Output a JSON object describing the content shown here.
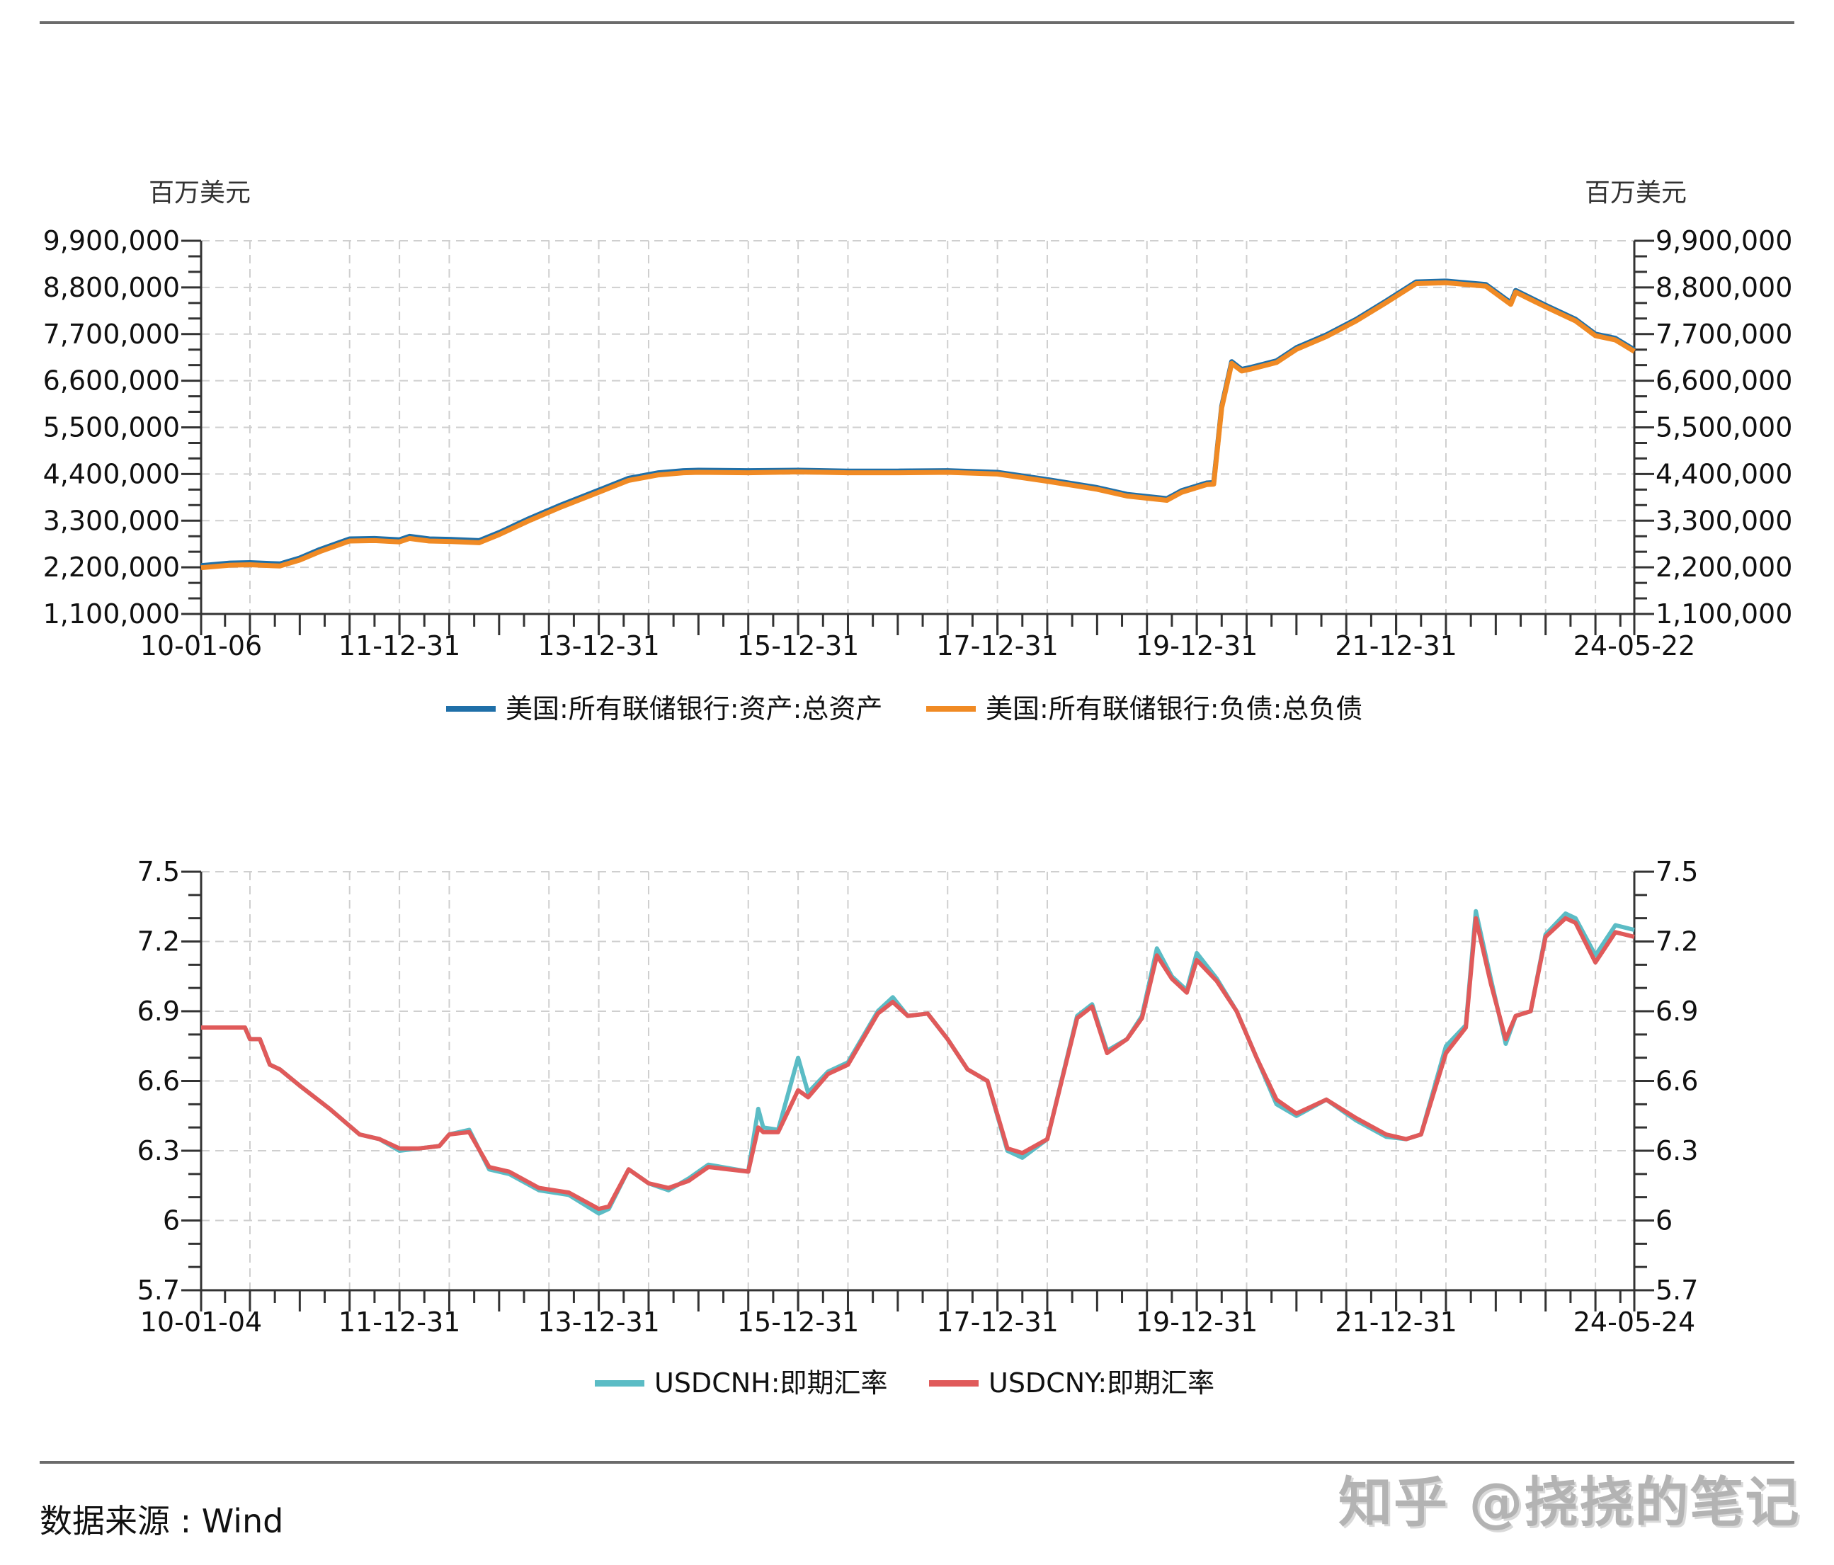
{
  "header": {
    "top_rule": true
  },
  "footer": {
    "source": "数据来源 : Wind",
    "watermark": "知乎 @挠挠的笔记"
  },
  "colors": {
    "total_assets": "#1f6fa8",
    "total_liabilities": "#f08a24",
    "usdcnh": "#5bbcc5",
    "usdcny": "#e05a5a",
    "axis": "#333333",
    "grid": "#cfcfcf"
  },
  "chart_data": [
    {
      "type": "line",
      "title": "",
      "unit_left": "百万美元",
      "unit_right": "百万美元",
      "xlabel": "",
      "ylabel": "百万美元",
      "ylim": [
        1100000,
        9900000
      ],
      "yticks": [
        "9,900,000",
        "8,800,000",
        "7,700,000",
        "6,600,000",
        "5,500,000",
        "4,400,000",
        "3,300,000",
        "2,200,000",
        "1,100,000"
      ],
      "ytick_values": [
        9900000,
        8800000,
        7700000,
        6600000,
        5500000,
        4400000,
        3300000,
        2200000,
        1100000
      ],
      "xtick_labels": [
        "10-01-06",
        "11-12-31",
        "13-12-31",
        "15-12-31",
        "17-12-31",
        "19-12-31",
        "21-12-31",
        "24-05-22"
      ],
      "xtick_years": [
        2010.01,
        2012.0,
        2014.0,
        2016.0,
        2018.0,
        2020.0,
        2022.0,
        2024.39
      ],
      "xlim_years": [
        2010.01,
        2024.39
      ],
      "grid": true,
      "legend_position": "bottom",
      "series": [
        {
          "name": "美国:所有联储银行:资产:总资产",
          "color": "#1f6fa8",
          "x": [
            2010.01,
            2010.3,
            2010.5,
            2010.8,
            2011.0,
            2011.2,
            2011.5,
            2011.75,
            2012.0,
            2012.1,
            2012.3,
            2012.5,
            2012.8,
            2013.0,
            2013.3,
            2013.6,
            2014.0,
            2014.3,
            2014.6,
            2014.85,
            2015.0,
            2015.5,
            2016.0,
            2016.5,
            2017.0,
            2017.5,
            2018.0,
            2018.5,
            2019.0,
            2019.3,
            2019.7,
            2019.85,
            2020.1,
            2020.17,
            2020.25,
            2020.35,
            2020.45,
            2020.55,
            2020.8,
            2021.0,
            2021.3,
            2021.6,
            2021.9,
            2022.2,
            2022.5,
            2022.9,
            2023.15,
            2023.2,
            2023.5,
            2023.8,
            2024.0,
            2024.2,
            2024.39
          ],
          "y": [
            2240000,
            2300000,
            2310000,
            2280000,
            2420000,
            2620000,
            2870000,
            2880000,
            2850000,
            2930000,
            2870000,
            2860000,
            2830000,
            3020000,
            3350000,
            3650000,
            4020000,
            4300000,
            4430000,
            4480000,
            4490000,
            4480000,
            4490000,
            4470000,
            4470000,
            4480000,
            4440000,
            4270000,
            4080000,
            3920000,
            3820000,
            4010000,
            4190000,
            4200000,
            6000000,
            7050000,
            6870000,
            6920000,
            7070000,
            7380000,
            7680000,
            8050000,
            8480000,
            8930000,
            8950000,
            8870000,
            8440000,
            8730000,
            8380000,
            8050000,
            7700000,
            7600000,
            7330000
          ]
        },
        {
          "name": "美国:所有联储银行:负债:总负债",
          "color": "#f08a24",
          "x": [
            2010.01,
            2010.3,
            2010.5,
            2010.8,
            2011.0,
            2011.2,
            2011.5,
            2011.75,
            2012.0,
            2012.1,
            2012.3,
            2012.5,
            2012.8,
            2013.0,
            2013.3,
            2013.6,
            2014.0,
            2014.3,
            2014.6,
            2014.85,
            2015.0,
            2015.5,
            2016.0,
            2016.5,
            2017.0,
            2017.5,
            2018.0,
            2018.5,
            2019.0,
            2019.3,
            2019.7,
            2019.85,
            2020.1,
            2020.17,
            2020.25,
            2020.35,
            2020.45,
            2020.55,
            2020.8,
            2021.0,
            2021.3,
            2021.6,
            2021.9,
            2022.2,
            2022.5,
            2022.9,
            2023.15,
            2023.2,
            2023.5,
            2023.8,
            2024.0,
            2024.2,
            2024.39
          ],
          "y": [
            2190000,
            2250000,
            2260000,
            2230000,
            2370000,
            2570000,
            2820000,
            2830000,
            2800000,
            2880000,
            2820000,
            2810000,
            2780000,
            2970000,
            3300000,
            3600000,
            3970000,
            4250000,
            4380000,
            4430000,
            4440000,
            4430000,
            4450000,
            4430000,
            4430000,
            4440000,
            4400000,
            4230000,
            4040000,
            3880000,
            3780000,
            3970000,
            4150000,
            4160000,
            5960000,
            7010000,
            6830000,
            6880000,
            7030000,
            7340000,
            7640000,
            8010000,
            8440000,
            8890000,
            8910000,
            8830000,
            8400000,
            8690000,
            8340000,
            8010000,
            7660000,
            7560000,
            7290000
          ]
        }
      ]
    },
    {
      "type": "line",
      "title": "",
      "xlabel": "",
      "ylabel": "",
      "ylim": [
        5.7,
        7.5
      ],
      "yticks": [
        "7.5",
        "7.2",
        "6.9",
        "6.6",
        "6.3",
        "6",
        "5.7"
      ],
      "ytick_values": [
        7.5,
        7.2,
        6.9,
        6.6,
        6.3,
        6.0,
        5.7
      ],
      "xtick_labels": [
        "10-01-04",
        "11-12-31",
        "13-12-31",
        "15-12-31",
        "17-12-31",
        "19-12-31",
        "21-12-31",
        "24-05-24"
      ],
      "xtick_years": [
        2010.01,
        2012.0,
        2014.0,
        2016.0,
        2018.0,
        2020.0,
        2022.0,
        2024.39
      ],
      "xlim_years": [
        2010.01,
        2024.39
      ],
      "grid": true,
      "legend_position": "bottom",
      "series": [
        {
          "name": "USDCNH:即期汇率",
          "color": "#5bbcc5",
          "x": [
            2010.01,
            2010.45,
            2010.5,
            2010.6,
            2010.7,
            2010.8,
            2011.0,
            2011.3,
            2011.6,
            2011.8,
            2012.0,
            2012.2,
            2012.4,
            2012.5,
            2012.7,
            2012.9,
            2013.1,
            2013.4,
            2013.7,
            2014.0,
            2014.1,
            2014.3,
            2014.5,
            2014.7,
            2014.9,
            2015.1,
            2015.5,
            2015.6,
            2015.65,
            2015.8,
            2016.0,
            2016.1,
            2016.3,
            2016.5,
            2016.8,
            2016.95,
            2017.1,
            2017.3,
            2017.5,
            2017.7,
            2017.9,
            2018.1,
            2018.25,
            2018.5,
            2018.8,
            2018.95,
            2019.1,
            2019.3,
            2019.45,
            2019.6,
            2019.75,
            2019.9,
            2020.0,
            2020.2,
            2020.4,
            2020.6,
            2020.8,
            2021.0,
            2021.3,
            2021.6,
            2021.9,
            2022.1,
            2022.25,
            2022.5,
            2022.7,
            2022.8,
            2022.95,
            2023.1,
            2023.2,
            2023.35,
            2023.5,
            2023.7,
            2023.8,
            2024.0,
            2024.2,
            2024.39
          ],
          "y": [
            6.83,
            6.83,
            6.78,
            6.78,
            6.67,
            6.65,
            6.58,
            6.48,
            6.37,
            6.35,
            6.3,
            6.31,
            6.32,
            6.37,
            6.39,
            6.22,
            6.2,
            6.13,
            6.11,
            6.03,
            6.05,
            6.22,
            6.16,
            6.13,
            6.18,
            6.24,
            6.21,
            6.48,
            6.4,
            6.39,
            6.7,
            6.55,
            6.64,
            6.68,
            6.9,
            6.96,
            6.88,
            6.89,
            6.78,
            6.65,
            6.6,
            6.3,
            6.27,
            6.35,
            6.88,
            6.93,
            6.73,
            6.78,
            6.88,
            7.17,
            7.05,
            6.99,
            7.15,
            7.04,
            6.9,
            6.7,
            6.5,
            6.45,
            6.52,
            6.43,
            6.36,
            6.35,
            6.37,
            6.75,
            6.84,
            7.33,
            7.04,
            6.76,
            6.88,
            6.9,
            7.23,
            7.32,
            7.3,
            7.14,
            7.27,
            7.25
          ]
        },
        {
          "name": "USDCNY:即期汇率",
          "color": "#e05a5a",
          "x": [
            2010.01,
            2010.45,
            2010.5,
            2010.6,
            2010.7,
            2010.8,
            2011.0,
            2011.3,
            2011.6,
            2011.8,
            2012.0,
            2012.2,
            2012.4,
            2012.5,
            2012.7,
            2012.9,
            2013.1,
            2013.4,
            2013.7,
            2014.0,
            2014.1,
            2014.3,
            2014.5,
            2014.7,
            2014.9,
            2015.1,
            2015.5,
            2015.6,
            2015.65,
            2015.8,
            2016.0,
            2016.1,
            2016.3,
            2016.5,
            2016.8,
            2016.95,
            2017.1,
            2017.3,
            2017.5,
            2017.7,
            2017.9,
            2018.1,
            2018.25,
            2018.5,
            2018.8,
            2018.95,
            2019.1,
            2019.3,
            2019.45,
            2019.6,
            2019.75,
            2019.9,
            2020.0,
            2020.2,
            2020.4,
            2020.6,
            2020.8,
            2021.0,
            2021.3,
            2021.6,
            2021.9,
            2022.1,
            2022.25,
            2022.5,
            2022.7,
            2022.8,
            2022.95,
            2023.1,
            2023.2,
            2023.35,
            2023.5,
            2023.7,
            2023.8,
            2024.0,
            2024.2,
            2024.39
          ],
          "y": [
            6.83,
            6.83,
            6.78,
            6.78,
            6.67,
            6.65,
            6.58,
            6.48,
            6.37,
            6.35,
            6.31,
            6.31,
            6.32,
            6.37,
            6.38,
            6.23,
            6.21,
            6.14,
            6.12,
            6.05,
            6.06,
            6.22,
            6.16,
            6.14,
            6.17,
            6.23,
            6.21,
            6.4,
            6.38,
            6.38,
            6.56,
            6.53,
            6.63,
            6.67,
            6.89,
            6.94,
            6.88,
            6.89,
            6.78,
            6.65,
            6.6,
            6.31,
            6.29,
            6.35,
            6.87,
            6.92,
            6.72,
            6.78,
            6.87,
            7.14,
            7.04,
            6.98,
            7.12,
            7.03,
            6.9,
            6.7,
            6.52,
            6.46,
            6.52,
            6.44,
            6.37,
            6.35,
            6.37,
            6.72,
            6.83,
            7.3,
            7.02,
            6.78,
            6.88,
            6.9,
            7.22,
            7.3,
            7.28,
            7.11,
            7.24,
            7.22
          ]
        }
      ]
    }
  ]
}
